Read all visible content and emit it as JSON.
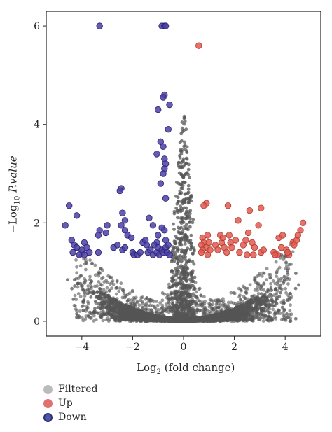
{
  "chart_data": {
    "type": "scatter",
    "title": "",
    "xlabel_prefix": "Log",
    "xlabel_sub": "2",
    "xlabel_suffix": " (fold change)",
    "ylabel_prefix": "−Log",
    "ylabel_sub": "10",
    "ylabel_suffix": " P.value",
    "xlim": [
      -5.4,
      5.4
    ],
    "ylim": [
      -0.3,
      6.3
    ],
    "xticks": [
      -4,
      -2,
      0,
      2,
      4
    ],
    "yticks": [
      0,
      2,
      4,
      6
    ],
    "grid": false,
    "colors": {
      "Filtered": "#555555",
      "Up": "#e05a4f",
      "Down": "#4b3fa7"
    },
    "legend": [
      {
        "name": "Filtered",
        "color": "#bbbbbb",
        "border": "#bbbbbb"
      },
      {
        "name": "Up",
        "color": "#e07070",
        "border": "#e07070"
      },
      {
        "name": "Down",
        "color": "#4b57a8",
        "border": "#2f2f7a"
      }
    ],
    "series": [
      {
        "name": "Down",
        "points": [
          [
            -3.3,
            6.0
          ],
          [
            -0.85,
            6.0
          ],
          [
            -0.75,
            6.0
          ],
          [
            -0.7,
            6.0
          ],
          [
            -0.75,
            4.6
          ],
          [
            -0.8,
            4.55
          ],
          [
            -0.55,
            4.4
          ],
          [
            -1.0,
            4.3
          ],
          [
            -0.6,
            3.9
          ],
          [
            -0.9,
            3.65
          ],
          [
            -0.8,
            3.55
          ],
          [
            -1.05,
            3.4
          ],
          [
            -0.75,
            3.3
          ],
          [
            -0.7,
            3.2
          ],
          [
            -0.75,
            3.1
          ],
          [
            -0.8,
            3.0
          ],
          [
            -0.9,
            2.8
          ],
          [
            -0.7,
            2.5
          ],
          [
            -2.45,
            2.7
          ],
          [
            -2.5,
            2.65
          ],
          [
            -4.5,
            2.35
          ],
          [
            -4.2,
            2.15
          ],
          [
            -4.65,
            1.95
          ],
          [
            -2.4,
            2.2
          ],
          [
            -2.3,
            2.05
          ],
          [
            -2.45,
            1.95
          ],
          [
            -2.3,
            1.85
          ],
          [
            -2.2,
            1.75
          ],
          [
            -2.05,
            1.7
          ],
          [
            -3.0,
            1.95
          ],
          [
            -3.05,
            1.8
          ],
          [
            -3.3,
            1.85
          ],
          [
            -3.35,
            1.75
          ],
          [
            -1.35,
            2.1
          ],
          [
            -1.2,
            1.95
          ],
          [
            -0.85,
            1.9
          ],
          [
            -0.75,
            1.85
          ],
          [
            -1.0,
            1.75
          ],
          [
            -1.05,
            1.6
          ],
          [
            -0.7,
            1.65
          ],
          [
            -4.4,
            1.65
          ],
          [
            -4.3,
            1.55
          ],
          [
            -4.2,
            1.5
          ],
          [
            -4.0,
            1.45
          ],
          [
            -3.9,
            1.6
          ],
          [
            -3.8,
            1.5
          ],
          [
            -3.7,
            1.4
          ],
          [
            -4.1,
            1.35
          ],
          [
            -3.9,
            1.35
          ],
          [
            -4.35,
            1.4
          ],
          [
            -3.35,
            1.4
          ],
          [
            -2.75,
            1.5
          ],
          [
            -2.6,
            1.55
          ],
          [
            -2.4,
            1.45
          ],
          [
            -2.3,
            1.5
          ],
          [
            -2.0,
            1.4
          ],
          [
            -1.95,
            1.35
          ],
          [
            -1.8,
            1.35
          ],
          [
            -1.7,
            1.4
          ],
          [
            -1.6,
            1.6
          ],
          [
            -1.5,
            1.65
          ],
          [
            -1.45,
            1.55
          ],
          [
            -1.4,
            1.4
          ],
          [
            -1.3,
            1.45
          ],
          [
            -1.2,
            1.35
          ],
          [
            -1.15,
            1.55
          ],
          [
            -1.05,
            1.4
          ],
          [
            -1.0,
            1.5
          ],
          [
            -0.95,
            1.35
          ],
          [
            -0.85,
            1.45
          ],
          [
            -0.8,
            1.4
          ],
          [
            -0.7,
            1.5
          ],
          [
            -0.65,
            1.4
          ],
          [
            -0.6,
            1.55
          ],
          [
            -0.55,
            1.35
          ]
        ]
      },
      {
        "name": "Up",
        "points": [
          [
            0.6,
            5.6
          ],
          [
            0.9,
            2.4
          ],
          [
            0.8,
            2.35
          ],
          [
            1.75,
            2.35
          ],
          [
            3.05,
            2.3
          ],
          [
            2.6,
            2.25
          ],
          [
            0.75,
            1.7
          ],
          [
            0.8,
            1.6
          ],
          [
            0.95,
            1.75
          ],
          [
            0.7,
            1.55
          ],
          [
            0.9,
            1.5
          ],
          [
            0.75,
            1.45
          ],
          [
            0.7,
            1.4
          ],
          [
            0.95,
            1.35
          ],
          [
            1.0,
            1.6
          ],
          [
            1.05,
            1.45
          ],
          [
            1.25,
            1.55
          ],
          [
            1.35,
            1.45
          ],
          [
            1.5,
            1.6
          ],
          [
            1.6,
            1.5
          ],
          [
            1.7,
            1.4
          ],
          [
            1.45,
            1.75
          ],
          [
            1.55,
            1.7
          ],
          [
            1.8,
            1.75
          ],
          [
            1.85,
            1.6
          ],
          [
            1.9,
            1.5
          ],
          [
            2.05,
            1.65
          ],
          [
            2.15,
            2.05
          ],
          [
            2.2,
            1.4
          ],
          [
            2.35,
            1.55
          ],
          [
            2.45,
            1.65
          ],
          [
            2.55,
            1.8
          ],
          [
            2.7,
            1.6
          ],
          [
            2.8,
            1.5
          ],
          [
            2.95,
            1.95
          ],
          [
            3.05,
            1.4
          ],
          [
            3.15,
            1.45
          ],
          [
            2.75,
            1.35
          ],
          [
            2.5,
            1.35
          ],
          [
            3.55,
            1.4
          ],
          [
            3.7,
            1.35
          ],
          [
            3.75,
            1.7
          ],
          [
            3.85,
            1.5
          ],
          [
            3.9,
            1.75
          ],
          [
            4.05,
            1.45
          ],
          [
            4.15,
            1.35
          ],
          [
            4.3,
            1.6
          ],
          [
            4.45,
            1.65
          ],
          [
            4.5,
            1.75
          ],
          [
            4.6,
            1.85
          ],
          [
            4.7,
            2.0
          ],
          [
            4.35,
            1.55
          ],
          [
            4.1,
            1.4
          ],
          [
            3.6,
            1.35
          ]
        ]
      }
    ]
  },
  "legend_labels": {
    "filtered": "Filtered",
    "up": "Up",
    "down": "Down"
  }
}
